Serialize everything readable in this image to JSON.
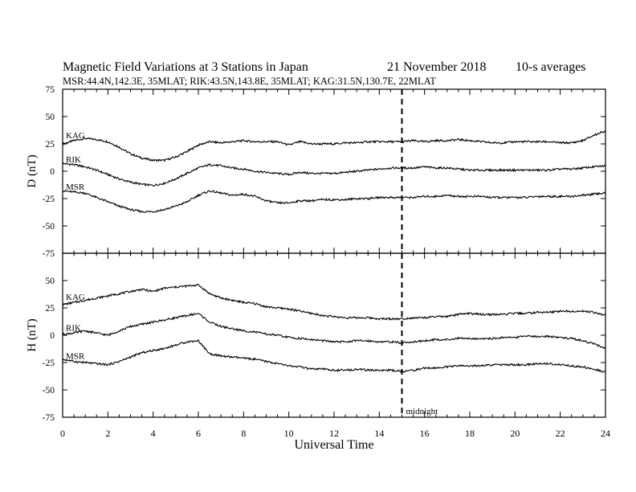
{
  "title": {
    "main": "Magnetic Field Variations at 3 Stations in Japan",
    "date": "21 November 2018",
    "averaging": "10-s averages",
    "stations_line": "MSR:44.4N,142.3E, 35MLAT;  RIK:43.5N,143.8E, 35MLAT;  KAG:31.5N,130.7E, 22MLAT"
  },
  "colors": {
    "ink": "#000000",
    "background": "#ffffff"
  },
  "chart_data": [
    {
      "type": "line",
      "panel": "top",
      "ylabel": "D (nT)",
      "xlabel": "",
      "xlim": [
        0,
        24
      ],
      "ylim": [
        -75,
        75
      ],
      "yticks": [
        75,
        50,
        25,
        0,
        -25,
        -50,
        -75
      ],
      "xticks": [
        0,
        2,
        4,
        6,
        8,
        10,
        12,
        14,
        16,
        18,
        20,
        22,
        24
      ],
      "show_x_tick_labels": false,
      "midnight_marker_ut": 15,
      "series": [
        {
          "name": "KAG",
          "x": [
            0,
            0.5,
            1,
            1.5,
            2,
            2.5,
            3,
            3.5,
            4,
            4.5,
            5,
            5.5,
            6,
            6.5,
            7,
            7.5,
            8,
            8.5,
            9,
            9.5,
            10,
            10.5,
            11,
            11.5,
            12,
            12.5,
            13,
            13.5,
            14,
            14.5,
            15,
            15.5,
            16,
            16.5,
            17,
            17.5,
            18,
            18.5,
            19,
            19.5,
            20,
            20.5,
            21,
            21.5,
            22,
            22.5,
            23,
            23.5,
            24
          ],
          "y": [
            25,
            28,
            30,
            29,
            27,
            22,
            16,
            12,
            10,
            10,
            13,
            18,
            24,
            27,
            26,
            27,
            28,
            27,
            27,
            27,
            24,
            27,
            25,
            25,
            25,
            26,
            26,
            27,
            27,
            27,
            27,
            28,
            27,
            28,
            28,
            29,
            28,
            27,
            26,
            26,
            27,
            27,
            27,
            27,
            26,
            26,
            28,
            33,
            37
          ]
        },
        {
          "name": "RIK",
          "x": [
            0,
            0.5,
            1,
            1.5,
            2,
            2.5,
            3,
            3.5,
            4,
            4.5,
            5,
            5.5,
            6,
            6.5,
            7,
            7.5,
            8,
            8.5,
            9,
            9.5,
            10,
            10.5,
            11,
            11.5,
            12,
            12.5,
            13,
            13.5,
            14,
            14.5,
            15,
            15.5,
            16,
            16.5,
            17,
            17.5,
            18,
            18.5,
            19,
            19.5,
            20,
            20.5,
            21,
            21.5,
            22,
            22.5,
            23,
            23.5,
            24
          ],
          "y": [
            7,
            6,
            4,
            1,
            -3,
            -7,
            -10,
            -12,
            -13,
            -11,
            -7,
            -2,
            3,
            6,
            5,
            3,
            2,
            0,
            -1,
            -2,
            -3,
            -1,
            -2,
            -2,
            -2,
            -1,
            0,
            1,
            2,
            3,
            3,
            3,
            4,
            3,
            3,
            2,
            1,
            1,
            1,
            1,
            1,
            1,
            1,
            1,
            2,
            2,
            3,
            4,
            5
          ]
        },
        {
          "name": "MSR",
          "x": [
            0,
            0.5,
            1,
            1.5,
            2,
            2.5,
            3,
            3.5,
            4,
            4.5,
            5,
            5.5,
            6,
            6.5,
            7,
            7.5,
            8,
            8.5,
            9,
            9.5,
            10,
            10.5,
            11,
            11.5,
            12,
            12.5,
            13,
            13.5,
            14,
            14.5,
            15,
            15.5,
            16,
            16.5,
            17,
            17.5,
            18,
            18.5,
            19,
            19.5,
            20,
            20.5,
            21,
            21.5,
            22,
            22.5,
            23,
            23.5,
            24
          ],
          "y": [
            -18,
            -19,
            -20,
            -24,
            -28,
            -32,
            -35,
            -37,
            -37,
            -35,
            -32,
            -28,
            -22,
            -18,
            -20,
            -22,
            -21,
            -23,
            -27,
            -29,
            -29,
            -27,
            -27,
            -26,
            -26,
            -26,
            -25,
            -25,
            -24,
            -24,
            -24,
            -24,
            -23,
            -23,
            -22,
            -23,
            -23,
            -23,
            -24,
            -24,
            -24,
            -24,
            -23,
            -23,
            -23,
            -23,
            -22,
            -21,
            -20
          ]
        }
      ]
    },
    {
      "type": "line",
      "panel": "bottom",
      "ylabel": "H (nT)",
      "xlabel": "Universal Time",
      "xlim": [
        0,
        24
      ],
      "ylim": [
        -75,
        75
      ],
      "yticks": [
        50,
        25,
        0,
        -25,
        -50,
        -75
      ],
      "xticks": [
        0,
        2,
        4,
        6,
        8,
        10,
        12,
        14,
        16,
        18,
        20,
        22,
        24
      ],
      "show_x_tick_labels": true,
      "midnight_marker_ut": 15,
      "midnight_label": "midnight",
      "series": [
        {
          "name": "KAG",
          "x": [
            0,
            0.5,
            1,
            1.5,
            2,
            2.5,
            3,
            3.5,
            4,
            4.5,
            5,
            5.5,
            6,
            6.5,
            7,
            7.5,
            8,
            8.5,
            9,
            9.5,
            10,
            10.5,
            11,
            11.5,
            12,
            12.5,
            13,
            13.5,
            14,
            14.5,
            15,
            15.5,
            16,
            16.5,
            17,
            17.5,
            18,
            18.5,
            19,
            19.5,
            20,
            20.5,
            21,
            21.5,
            22,
            22.5,
            23,
            23.5,
            24
          ],
          "y": [
            28,
            30,
            32,
            34,
            36,
            38,
            40,
            42,
            40,
            43,
            44,
            45,
            46,
            38,
            34,
            32,
            30,
            29,
            26,
            25,
            24,
            22,
            20,
            18,
            17,
            16,
            16,
            16,
            15,
            15,
            15,
            16,
            16,
            17,
            17,
            19,
            20,
            19,
            19,
            19,
            20,
            20,
            21,
            21,
            22,
            22,
            22,
            21,
            18
          ]
        },
        {
          "name": "RIK",
          "x": [
            0,
            0.5,
            1,
            1.5,
            2,
            2.5,
            3,
            3.5,
            4,
            4.5,
            5,
            5.5,
            6,
            6.5,
            7,
            7.5,
            8,
            8.5,
            9,
            9.5,
            10,
            10.5,
            11,
            11.5,
            12,
            12.5,
            13,
            13.5,
            14,
            14.5,
            15,
            15.5,
            16,
            16.5,
            17,
            17.5,
            18,
            18.5,
            19,
            19.5,
            20,
            20.5,
            21,
            21.5,
            22,
            22.5,
            23,
            23.5,
            24
          ],
          "y": [
            1,
            2,
            4,
            2,
            0,
            4,
            8,
            10,
            12,
            14,
            16,
            18,
            20,
            12,
            8,
            6,
            4,
            3,
            1,
            0,
            -2,
            -3,
            -4,
            -5,
            -6,
            -6,
            -5,
            -5,
            -6,
            -6,
            -7,
            -6,
            -5,
            -4,
            -4,
            -3,
            -3,
            -3,
            -3,
            -2,
            -2,
            -1,
            -1,
            -1,
            -2,
            -3,
            -5,
            -8,
            -12
          ]
        },
        {
          "name": "MSR",
          "x": [
            0,
            0.5,
            1,
            1.5,
            2,
            2.5,
            3,
            3.5,
            4,
            4.5,
            5,
            5.5,
            6,
            6.5,
            7,
            7.5,
            8,
            8.5,
            9,
            9.5,
            10,
            10.5,
            11,
            11.5,
            12,
            12.5,
            13,
            13.5,
            14,
            14.5,
            15,
            15.5,
            16,
            16.5,
            17,
            17.5,
            18,
            18.5,
            19,
            19.5,
            20,
            20.5,
            21,
            21.5,
            22,
            22.5,
            23,
            23.5,
            24
          ],
          "y": [
            -22,
            -24,
            -25,
            -26,
            -27,
            -24,
            -20,
            -16,
            -14,
            -12,
            -9,
            -6,
            -5,
            -17,
            -19,
            -20,
            -21,
            -22,
            -24,
            -26,
            -28,
            -29,
            -31,
            -31,
            -32,
            -32,
            -31,
            -32,
            -32,
            -32,
            -33,
            -32,
            -30,
            -30,
            -29,
            -28,
            -28,
            -28,
            -27,
            -27,
            -27,
            -27,
            -26,
            -26,
            -27,
            -28,
            -29,
            -31,
            -34
          ]
        }
      ]
    }
  ]
}
